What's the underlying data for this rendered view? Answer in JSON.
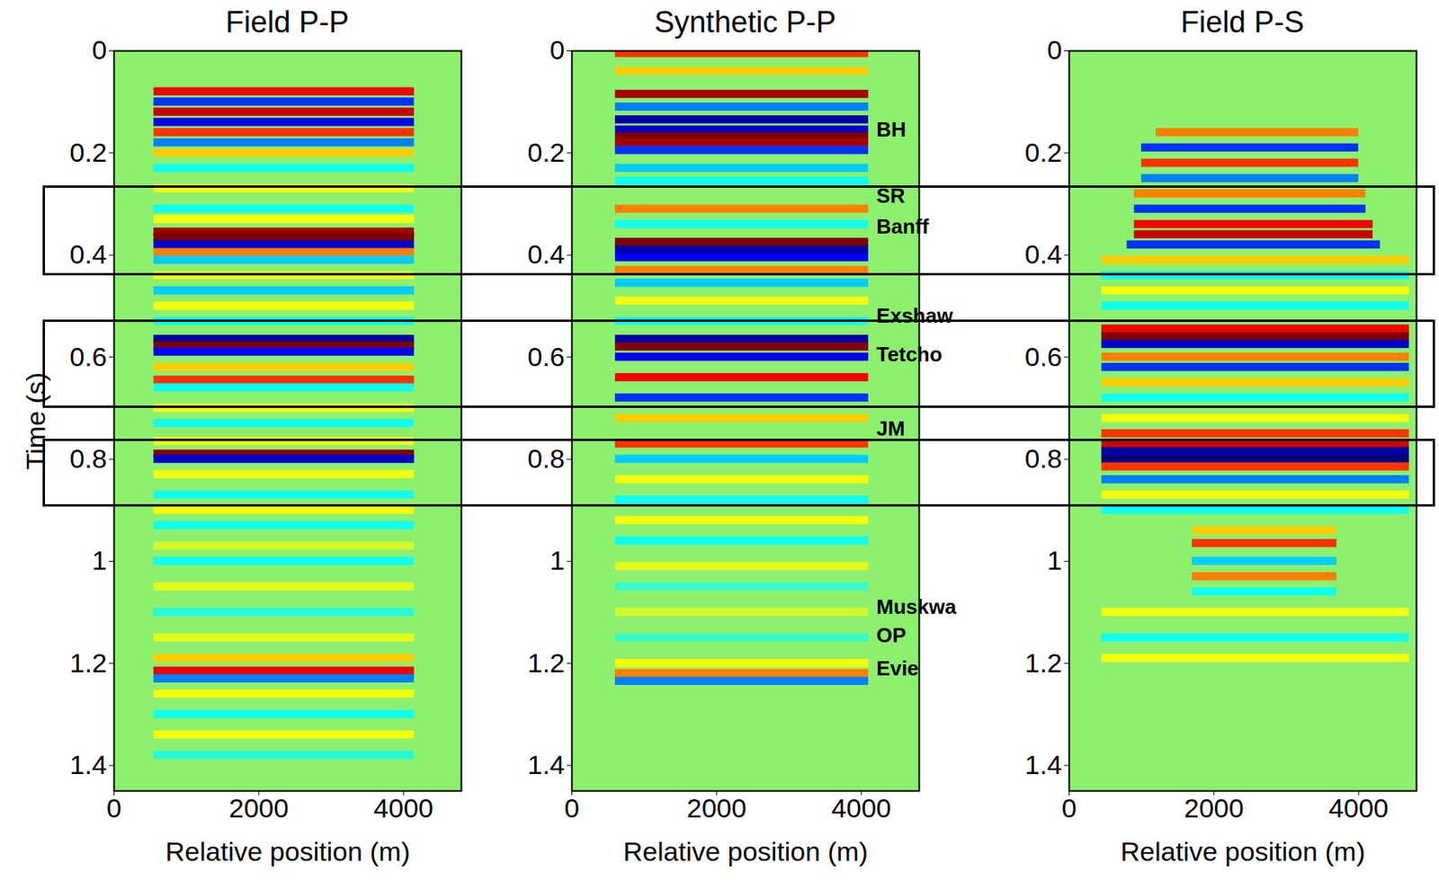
{
  "chart_data": [
    {
      "type": "seismic_section",
      "title": "Field P-P",
      "x_label": "Relative position (m)",
      "y_label": "Time (s)",
      "xlim": [
        0,
        4800
      ],
      "xticks": [
        0,
        2000,
        4000
      ],
      "ylim": [
        0,
        1.45
      ],
      "yticks": [
        0,
        0.2,
        0.4,
        0.6,
        0.8,
        1,
        1.2,
        1.4
      ],
      "amplitude_lim": [
        -1,
        1
      ],
      "trace_range": [
        550,
        4150
      ],
      "reflections": [
        {
          "t": 0.08,
          "amp": 0.7
        },
        {
          "t": 0.1,
          "amp": -0.6
        },
        {
          "t": 0.12,
          "amp": 0.8
        },
        {
          "t": 0.14,
          "amp": -0.7
        },
        {
          "t": 0.16,
          "amp": 0.6
        },
        {
          "t": 0.18,
          "amp": -0.5
        },
        {
          "t": 0.2,
          "amp": 0.4
        },
        {
          "t": 0.23,
          "amp": -0.3
        },
        {
          "t": 0.27,
          "amp": 0.3
        },
        {
          "t": 0.31,
          "amp": -0.3
        },
        {
          "t": 0.33,
          "amp": 0.3
        },
        {
          "t": 0.355,
          "amp": 0.9
        },
        {
          "t": 0.365,
          "amp": 1.0
        },
        {
          "t": 0.38,
          "amp": -0.8
        },
        {
          "t": 0.395,
          "amp": 0.5
        },
        {
          "t": 0.41,
          "amp": -0.4
        },
        {
          "t": 0.44,
          "amp": 0.3
        },
        {
          "t": 0.47,
          "amp": -0.4
        },
        {
          "t": 0.5,
          "amp": 0.3
        },
        {
          "t": 0.53,
          "amp": -0.3
        },
        {
          "t": 0.565,
          "amp": -0.9
        },
        {
          "t": 0.578,
          "amp": 1.0
        },
        {
          "t": 0.59,
          "amp": -0.7
        },
        {
          "t": 0.62,
          "amp": 0.4
        },
        {
          "t": 0.645,
          "amp": 0.6
        },
        {
          "t": 0.66,
          "amp": -0.3
        },
        {
          "t": 0.7,
          "amp": 0.3
        },
        {
          "t": 0.73,
          "amp": -0.3
        },
        {
          "t": 0.765,
          "amp": 0.3
        },
        {
          "t": 0.79,
          "amp": 1.0
        },
        {
          "t": 0.8,
          "amp": -0.8
        },
        {
          "t": 0.83,
          "amp": 0.3
        },
        {
          "t": 0.87,
          "amp": -0.3
        },
        {
          "t": 0.9,
          "amp": 0.3
        },
        {
          "t": 0.93,
          "amp": -0.3
        },
        {
          "t": 0.97,
          "amp": 0.2
        },
        {
          "t": 1.0,
          "amp": -0.3
        },
        {
          "t": 1.05,
          "amp": 0.25
        },
        {
          "t": 1.1,
          "amp": -0.25
        },
        {
          "t": 1.15,
          "amp": 0.25
        },
        {
          "t": 1.19,
          "amp": 0.4
        },
        {
          "t": 1.215,
          "amp": 0.7
        },
        {
          "t": 1.23,
          "amp": -0.5
        },
        {
          "t": 1.26,
          "amp": 0.3
        },
        {
          "t": 1.3,
          "amp": -0.3
        },
        {
          "t": 1.34,
          "amp": 0.3
        },
        {
          "t": 1.38,
          "amp": -0.25
        }
      ],
      "formations": []
    },
    {
      "type": "seismic_section",
      "title": "Synthetic P-P",
      "x_label": "Relative position (m)",
      "y_label": null,
      "xlim": [
        0,
        4800
      ],
      "xticks": [
        0,
        2000,
        4000
      ],
      "ylim": [
        0,
        1.45
      ],
      "yticks": [
        0,
        0.2,
        0.4,
        0.6,
        0.8,
        1,
        1.2,
        1.4
      ],
      "amplitude_lim": [
        -1,
        1
      ],
      "trace_range": [
        600,
        4100
      ],
      "reflections": [
        {
          "t": 0.005,
          "amp": 0.6
        },
        {
          "t": 0.04,
          "amp": 0.4
        },
        {
          "t": 0.085,
          "amp": 0.9
        },
        {
          "t": 0.11,
          "amp": -0.5
        },
        {
          "t": 0.135,
          "amp": -0.9
        },
        {
          "t": 0.155,
          "amp": -0.8
        },
        {
          "t": 0.168,
          "amp": 1.0
        },
        {
          "t": 0.18,
          "amp": 0.9
        },
        {
          "t": 0.195,
          "amp": -0.6
        },
        {
          "t": 0.23,
          "amp": -0.4
        },
        {
          "t": 0.255,
          "amp": -0.3
        },
        {
          "t": 0.31,
          "amp": 0.5
        },
        {
          "t": 0.34,
          "amp": -0.3
        },
        {
          "t": 0.375,
          "amp": 1.0
        },
        {
          "t": 0.39,
          "amp": -0.9
        },
        {
          "t": 0.405,
          "amp": -0.7
        },
        {
          "t": 0.43,
          "amp": 0.5
        },
        {
          "t": 0.455,
          "amp": -0.4
        },
        {
          "t": 0.49,
          "amp": 0.3
        },
        {
          "t": 0.53,
          "amp": -0.3
        },
        {
          "t": 0.565,
          "amp": -0.9
        },
        {
          "t": 0.58,
          "amp": 1.0
        },
        {
          "t": 0.6,
          "amp": -0.7
        },
        {
          "t": 0.64,
          "amp": 0.7
        },
        {
          "t": 0.68,
          "amp": -0.6
        },
        {
          "t": 0.72,
          "amp": 0.4
        },
        {
          "t": 0.77,
          "amp": 0.6
        },
        {
          "t": 0.8,
          "amp": -0.4
        },
        {
          "t": 0.84,
          "amp": 0.3
        },
        {
          "t": 0.88,
          "amp": -0.3
        },
        {
          "t": 0.92,
          "amp": 0.3
        },
        {
          "t": 0.96,
          "amp": -0.3
        },
        {
          "t": 1.01,
          "amp": 0.25
        },
        {
          "t": 1.05,
          "amp": -0.2
        },
        {
          "t": 1.1,
          "amp": 0.2
        },
        {
          "t": 1.15,
          "amp": -0.2
        },
        {
          "t": 1.2,
          "amp": 0.3
        },
        {
          "t": 1.22,
          "amp": 0.5
        },
        {
          "t": 1.235,
          "amp": -0.5
        }
      ],
      "formations": [
        {
          "label": "BH",
          "t": 0.155
        },
        {
          "label": "SR",
          "t": 0.285
        },
        {
          "label": "Banff",
          "t": 0.345
        },
        {
          "label": "Exshaw",
          "t": 0.52
        },
        {
          "label": "Tetcho",
          "t": 0.595
        },
        {
          "label": "JM",
          "t": 0.74
        },
        {
          "label": "Muskwa",
          "t": 1.09
        },
        {
          "label": "OP",
          "t": 1.145
        },
        {
          "label": "Evie",
          "t": 1.21
        }
      ]
    },
    {
      "type": "seismic_section",
      "title": "Field P-S",
      "x_label": "Relative position (m)",
      "y_label": null,
      "xlim": [
        0,
        4800
      ],
      "xticks": [
        0,
        2000,
        4000
      ],
      "ylim": [
        0,
        1.45
      ],
      "yticks": [
        0,
        0.2,
        0.4,
        0.6,
        0.8,
        1,
        1.2,
        1.4
      ],
      "amplitude_lim": [
        -1,
        1
      ],
      "trace_range": [
        450,
        4700
      ],
      "reflections": [
        {
          "t": 0.16,
          "amp": 0.5,
          "x0": 1200,
          "x1": 4000
        },
        {
          "t": 0.19,
          "amp": -0.6,
          "x0": 1000,
          "x1": 4000
        },
        {
          "t": 0.22,
          "amp": 0.6,
          "x0": 1000,
          "x1": 4000
        },
        {
          "t": 0.25,
          "amp": -0.5,
          "x0": 1000,
          "x1": 4000
        },
        {
          "t": 0.28,
          "amp": 0.5,
          "x0": 900,
          "x1": 4100
        },
        {
          "t": 0.31,
          "amp": -0.6,
          "x0": 900,
          "x1": 4100
        },
        {
          "t": 0.34,
          "amp": 0.7,
          "x0": 900,
          "x1": 4200
        },
        {
          "t": 0.36,
          "amp": 0.8,
          "x0": 900,
          "x1": 4200
        },
        {
          "t": 0.38,
          "amp": -0.6,
          "x0": 800,
          "x1": 4300
        },
        {
          "t": 0.41,
          "amp": 0.4
        },
        {
          "t": 0.44,
          "amp": -0.3
        },
        {
          "t": 0.47,
          "amp": 0.3
        },
        {
          "t": 0.5,
          "amp": -0.3
        },
        {
          "t": 0.545,
          "amp": 0.7
        },
        {
          "t": 0.56,
          "amp": 1.0
        },
        {
          "t": 0.575,
          "amp": -0.8
        },
        {
          "t": 0.6,
          "amp": 0.5
        },
        {
          "t": 0.62,
          "amp": -0.6
        },
        {
          "t": 0.65,
          "amp": 0.4
        },
        {
          "t": 0.68,
          "amp": -0.3
        },
        {
          "t": 0.72,
          "amp": 0.3
        },
        {
          "t": 0.75,
          "amp": 0.6
        },
        {
          "t": 0.77,
          "amp": 0.8
        },
        {
          "t": 0.785,
          "amp": -0.9
        },
        {
          "t": 0.8,
          "amp": -1.0
        },
        {
          "t": 0.815,
          "amp": 0.6
        },
        {
          "t": 0.84,
          "amp": -0.5
        },
        {
          "t": 0.87,
          "amp": 0.3
        },
        {
          "t": 0.9,
          "amp": -0.3
        },
        {
          "t": 0.94,
          "amp": 0.4,
          "x0": 1700,
          "x1": 3700
        },
        {
          "t": 0.965,
          "amp": 0.6,
          "x0": 1700,
          "x1": 3700
        },
        {
          "t": 1.0,
          "amp": -0.4,
          "x0": 1700,
          "x1": 3700
        },
        {
          "t": 1.03,
          "amp": 0.5,
          "x0": 1700,
          "x1": 3700
        },
        {
          "t": 1.06,
          "amp": -0.3,
          "x0": 1700,
          "x1": 3700
        },
        {
          "t": 1.1,
          "amp": 0.3
        },
        {
          "t": 1.15,
          "amp": -0.3
        },
        {
          "t": 1.19,
          "amp": 0.3
        }
      ],
      "formations": []
    }
  ],
  "annotations": {
    "boxes": [
      [
        0.264,
        0.44
      ],
      [
        0.527,
        0.7
      ],
      [
        0.761,
        0.894
      ]
    ]
  }
}
